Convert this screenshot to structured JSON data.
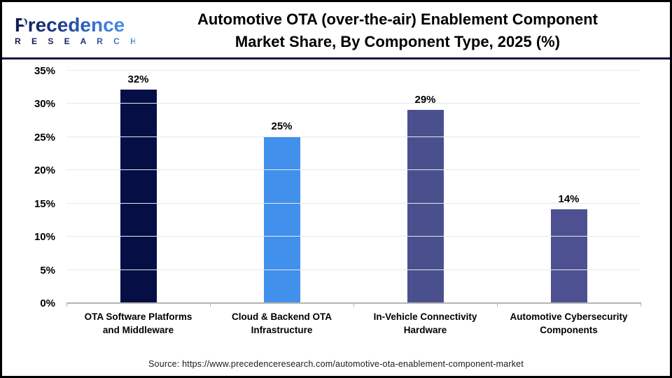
{
  "header": {
    "logo": {
      "brand": "Precedence",
      "sub": "R E S E A R C H"
    },
    "title_line1": "Automotive OTA (over-the-air) Enablement Component",
    "title_line2": "Market Share, By Component Type, 2025 (%)"
  },
  "chart_data": {
    "type": "bar",
    "title": "Automotive OTA (over-the-air) Enablement Component Market Share, By Component Type, 2025 (%)",
    "categories": [
      "OTA Software Platforms and Middleware",
      "Cloud & Backend OTA Infrastructure",
      "In-Vehicle Connectivity Hardware",
      "Automotive Cybersecurity Components"
    ],
    "category_lines": [
      [
        "OTA Software Platforms",
        "and Middleware"
      ],
      [
        "Cloud & Backend OTA",
        "Infrastructure"
      ],
      [
        "In-Vehicle Connectivity",
        "Hardware"
      ],
      [
        "Automotive Cybersecurity",
        "Components"
      ]
    ],
    "values": [
      32,
      25,
      29,
      14
    ],
    "value_labels": [
      "32%",
      "25%",
      "29%",
      "14%"
    ],
    "bar_colors": [
      "#050f45",
      "#4190ec",
      "#4a508e",
      "#4d5191"
    ],
    "y_ticks": [
      "0%",
      "5%",
      "10%",
      "15%",
      "20%",
      "25%",
      "30%",
      "35%"
    ],
    "ylim": [
      0,
      35
    ],
    "grid": true,
    "legend": "none",
    "xlabel": "",
    "ylabel": ""
  },
  "colors": {
    "separator": "#131549",
    "gridline": "#e8e8e8",
    "axis_line": "#b4b4b4",
    "text": "#000000"
  },
  "footer": {
    "source": "Source: https://www.precedenceresearch.com/automotive-ota-enablement-component-market"
  }
}
